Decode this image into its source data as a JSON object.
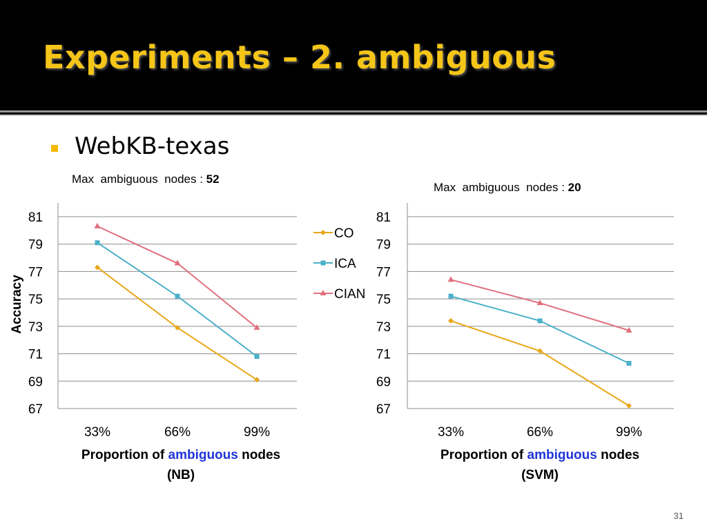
{
  "slide": {
    "title": "Experiments – 2. ambiguous",
    "bullet": "WebKB-texas",
    "page_number": "31"
  },
  "charts": {
    "left": {
      "max_note_prefix": "Max  ambiguous  nodes : ",
      "max_note_value": "52",
      "xlabel_pre": "Proportion of ",
      "xlabel_hl": "ambiguous",
      "xlabel_post": " nodes",
      "xlabel_line2": "(NB)"
    },
    "right": {
      "max_note_prefix": "Max  ambiguous  nodes : ",
      "max_note_value": "20",
      "xlabel_pre": "Proportion of ",
      "xlabel_hl": "ambiguous",
      "xlabel_post": " nodes",
      "xlabel_line2": "(SVM)"
    },
    "ylabel": "Accuracy"
  },
  "colors": {
    "CO": "#e8a718",
    "ICA": "#4ab0c9",
    "CIAN": "#e06e7c",
    "highlight": "#1f35d8",
    "title": "#f5c518"
  },
  "chart_data": [
    {
      "type": "line",
      "categories": [
        "33%",
        "66%",
        "99%"
      ],
      "ylim": [
        67,
        81
      ],
      "yticks": [
        67,
        69,
        71,
        73,
        75,
        77,
        79,
        81
      ],
      "ylabel": "Accuracy",
      "xlabel": "Proportion of ambiguous nodes (NB)",
      "grid": true,
      "legend": "right",
      "series": [
        {
          "name": "CO",
          "marker": "diamond",
          "values": [
            77.3,
            72.9,
            69.1
          ]
        },
        {
          "name": "ICA",
          "marker": "square",
          "values": [
            79.1,
            75.2,
            70.8
          ]
        },
        {
          "name": "CIAN",
          "marker": "triangle",
          "values": [
            80.3,
            77.6,
            72.9
          ]
        }
      ]
    },
    {
      "type": "line",
      "categories": [
        "33%",
        "66%",
        "99%"
      ],
      "ylim": [
        67,
        81
      ],
      "yticks": [
        67,
        69,
        71,
        73,
        75,
        77,
        79,
        81
      ],
      "xlabel": "Proportion of ambiguous nodes (SVM)",
      "grid": true,
      "series": [
        {
          "name": "CO",
          "marker": "diamond",
          "values": [
            73.4,
            71.2,
            67.2
          ]
        },
        {
          "name": "ICA",
          "marker": "square",
          "values": [
            75.2,
            73.4,
            70.3
          ]
        },
        {
          "name": "CIAN",
          "marker": "triangle",
          "values": [
            76.4,
            74.7,
            72.7
          ]
        }
      ]
    }
  ]
}
